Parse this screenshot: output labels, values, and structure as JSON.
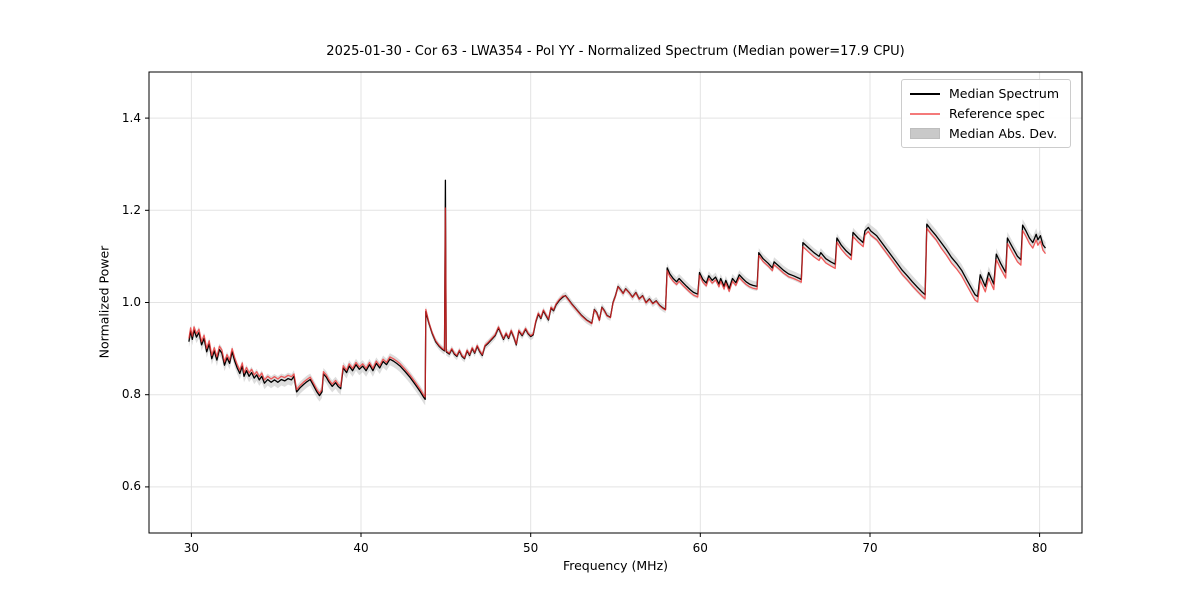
{
  "chart_data": {
    "type": "line",
    "title": "2025-01-30 - Cor 63 - LWA354 - Pol YY - Normalized Spectrum (Median power=17.9 CPU)",
    "xlabel": "Frequency (MHz)",
    "ylabel": "Normalized Power",
    "xlim": [
      27.5,
      82.5
    ],
    "ylim": [
      0.5,
      1.5
    ],
    "xticks": [
      30,
      40,
      50,
      60,
      70,
      80
    ],
    "yticks": [
      0.6,
      0.8,
      1.0,
      1.2,
      1.4
    ],
    "grid": true,
    "legend_position": "upper right",
    "colors": {
      "median": "#000000",
      "reference": "#f02b2b",
      "reference_legend": "#f47a7a",
      "band": "#bbbbbb",
      "grid": "#e3e3e3",
      "spine": "#000000"
    },
    "legend": {
      "entries": [
        {
          "label": "Median Spectrum",
          "type": "line",
          "color": "#000000"
        },
        {
          "label": "Reference spec",
          "type": "line",
          "color": "#f47a7a"
        },
        {
          "label": "Median Abs. Dev.",
          "type": "patch",
          "color": "#c9c9c9"
        }
      ]
    },
    "series": [
      {
        "name": "Median Spectrum",
        "points": [
          [
            29.85,
            0.915
          ],
          [
            29.95,
            0.938
          ],
          [
            30.05,
            0.92
          ],
          [
            30.15,
            0.94
          ],
          [
            30.3,
            0.925
          ],
          [
            30.45,
            0.935
          ],
          [
            30.6,
            0.908
          ],
          [
            30.75,
            0.922
          ],
          [
            30.9,
            0.893
          ],
          [
            31.05,
            0.91
          ],
          [
            31.2,
            0.878
          ],
          [
            31.35,
            0.895
          ],
          [
            31.5,
            0.875
          ],
          [
            31.65,
            0.898
          ],
          [
            31.8,
            0.89
          ],
          [
            31.95,
            0.864
          ],
          [
            32.1,
            0.88
          ],
          [
            32.25,
            0.868
          ],
          [
            32.4,
            0.893
          ],
          [
            32.55,
            0.873
          ],
          [
            32.7,
            0.858
          ],
          [
            32.85,
            0.846
          ],
          [
            33.0,
            0.862
          ],
          [
            33.1,
            0.84
          ],
          [
            33.25,
            0.852
          ],
          [
            33.4,
            0.84
          ],
          [
            33.55,
            0.848
          ],
          [
            33.7,
            0.836
          ],
          [
            33.85,
            0.843
          ],
          [
            34.0,
            0.832
          ],
          [
            34.15,
            0.84
          ],
          [
            34.3,
            0.825
          ],
          [
            34.5,
            0.833
          ],
          [
            34.7,
            0.827
          ],
          [
            34.9,
            0.832
          ],
          [
            35.1,
            0.827
          ],
          [
            35.3,
            0.833
          ],
          [
            35.5,
            0.83
          ],
          [
            35.7,
            0.835
          ],
          [
            35.9,
            0.832
          ],
          [
            36.05,
            0.84
          ],
          [
            36.2,
            0.806
          ],
          [
            36.4,
            0.815
          ],
          [
            36.6,
            0.822
          ],
          [
            36.8,
            0.828
          ],
          [
            37.0,
            0.833
          ],
          [
            37.2,
            0.82
          ],
          [
            37.4,
            0.806
          ],
          [
            37.55,
            0.798
          ],
          [
            37.7,
            0.806
          ],
          [
            37.78,
            0.845
          ],
          [
            37.95,
            0.838
          ],
          [
            38.1,
            0.828
          ],
          [
            38.3,
            0.818
          ],
          [
            38.5,
            0.826
          ],
          [
            38.65,
            0.818
          ],
          [
            38.8,
            0.813
          ],
          [
            38.95,
            0.858
          ],
          [
            39.15,
            0.848
          ],
          [
            39.3,
            0.862
          ],
          [
            39.5,
            0.852
          ],
          [
            39.7,
            0.865
          ],
          [
            39.9,
            0.855
          ],
          [
            40.1,
            0.862
          ],
          [
            40.3,
            0.852
          ],
          [
            40.5,
            0.865
          ],
          [
            40.7,
            0.852
          ],
          [
            40.9,
            0.868
          ],
          [
            41.1,
            0.858
          ],
          [
            41.3,
            0.872
          ],
          [
            41.5,
            0.865
          ],
          [
            41.7,
            0.877
          ],
          [
            41.9,
            0.873
          ],
          [
            42.1,
            0.868
          ],
          [
            42.3,
            0.862
          ],
          [
            42.6,
            0.85
          ],
          [
            42.9,
            0.837
          ],
          [
            43.2,
            0.822
          ],
          [
            43.5,
            0.806
          ],
          [
            43.7,
            0.794
          ],
          [
            43.78,
            0.79
          ],
          [
            43.82,
            0.98
          ],
          [
            44.0,
            0.955
          ],
          [
            44.2,
            0.932
          ],
          [
            44.4,
            0.915
          ],
          [
            44.6,
            0.905
          ],
          [
            44.8,
            0.898
          ],
          [
            44.92,
            0.895
          ],
          [
            44.97,
            1.265
          ],
          [
            45.02,
            0.893
          ],
          [
            45.2,
            0.888
          ],
          [
            45.35,
            0.898
          ],
          [
            45.5,
            0.888
          ],
          [
            45.65,
            0.883
          ],
          [
            45.8,
            0.895
          ],
          [
            45.95,
            0.883
          ],
          [
            46.1,
            0.878
          ],
          [
            46.25,
            0.895
          ],
          [
            46.4,
            0.885
          ],
          [
            46.55,
            0.9
          ],
          [
            46.7,
            0.89
          ],
          [
            46.85,
            0.905
          ],
          [
            47.0,
            0.893
          ],
          [
            47.15,
            0.885
          ],
          [
            47.3,
            0.905
          ],
          [
            47.5,
            0.912
          ],
          [
            47.7,
            0.92
          ],
          [
            47.9,
            0.928
          ],
          [
            48.1,
            0.945
          ],
          [
            48.25,
            0.932
          ],
          [
            48.4,
            0.92
          ],
          [
            48.55,
            0.932
          ],
          [
            48.7,
            0.922
          ],
          [
            48.85,
            0.938
          ],
          [
            49.0,
            0.925
          ],
          [
            49.15,
            0.908
          ],
          [
            49.3,
            0.938
          ],
          [
            49.5,
            0.928
          ],
          [
            49.7,
            0.942
          ],
          [
            49.85,
            0.932
          ],
          [
            50.0,
            0.926
          ],
          [
            50.15,
            0.93
          ],
          [
            50.3,
            0.958
          ],
          [
            50.45,
            0.975
          ],
          [
            50.6,
            0.965
          ],
          [
            50.75,
            0.982
          ],
          [
            50.9,
            0.972
          ],
          [
            51.05,
            0.962
          ],
          [
            51.2,
            0.988
          ],
          [
            51.35,
            0.982
          ],
          [
            51.5,
            0.995
          ],
          [
            51.7,
            1.005
          ],
          [
            51.9,
            1.012
          ],
          [
            52.05,
            1.015
          ],
          [
            52.2,
            1.008
          ],
          [
            52.4,
            0.998
          ],
          [
            52.7,
            0.985
          ],
          [
            53.0,
            0.972
          ],
          [
            53.3,
            0.962
          ],
          [
            53.6,
            0.955
          ],
          [
            53.75,
            0.985
          ],
          [
            53.9,
            0.978
          ],
          [
            54.05,
            0.962
          ],
          [
            54.2,
            0.99
          ],
          [
            54.35,
            0.982
          ],
          [
            54.5,
            0.972
          ],
          [
            54.7,
            0.968
          ],
          [
            54.85,
            1.0
          ],
          [
            55.0,
            1.015
          ],
          [
            55.15,
            1.035
          ],
          [
            55.3,
            1.028
          ],
          [
            55.45,
            1.02
          ],
          [
            55.6,
            1.03
          ],
          [
            55.8,
            1.022
          ],
          [
            56.0,
            1.012
          ],
          [
            56.2,
            1.022
          ],
          [
            56.4,
            1.008
          ],
          [
            56.6,
            1.015
          ],
          [
            56.8,
            1.0
          ],
          [
            57.0,
            1.008
          ],
          [
            57.2,
            0.998
          ],
          [
            57.4,
            1.004
          ],
          [
            57.6,
            0.994
          ],
          [
            57.8,
            0.988
          ],
          [
            57.95,
            0.985
          ],
          [
            58.05,
            1.075
          ],
          [
            58.2,
            1.062
          ],
          [
            58.4,
            1.052
          ],
          [
            58.6,
            1.045
          ],
          [
            58.75,
            1.052
          ],
          [
            59.0,
            1.042
          ],
          [
            59.2,
            1.035
          ],
          [
            59.4,
            1.028
          ],
          [
            59.6,
            1.022
          ],
          [
            59.85,
            1.018
          ],
          [
            59.95,
            1.065
          ],
          [
            60.15,
            1.05
          ],
          [
            60.35,
            1.042
          ],
          [
            60.5,
            1.058
          ],
          [
            60.7,
            1.048
          ],
          [
            60.9,
            1.055
          ],
          [
            61.1,
            1.04
          ],
          [
            61.2,
            1.052
          ],
          [
            61.4,
            1.035
          ],
          [
            61.5,
            1.048
          ],
          [
            61.7,
            1.03
          ],
          [
            61.9,
            1.052
          ],
          [
            62.1,
            1.043
          ],
          [
            62.3,
            1.06
          ],
          [
            62.5,
            1.052
          ],
          [
            62.7,
            1.045
          ],
          [
            62.9,
            1.04
          ],
          [
            63.1,
            1.037
          ],
          [
            63.35,
            1.035
          ],
          [
            63.45,
            1.108
          ],
          [
            63.7,
            1.095
          ],
          [
            64.0,
            1.085
          ],
          [
            64.25,
            1.075
          ],
          [
            64.35,
            1.088
          ],
          [
            64.6,
            1.08
          ],
          [
            64.9,
            1.07
          ],
          [
            65.2,
            1.062
          ],
          [
            65.5,
            1.058
          ],
          [
            65.8,
            1.053
          ],
          [
            65.95,
            1.05
          ],
          [
            66.05,
            1.13
          ],
          [
            66.4,
            1.118
          ],
          [
            66.7,
            1.108
          ],
          [
            67.0,
            1.1
          ],
          [
            67.1,
            1.108
          ],
          [
            67.4,
            1.095
          ],
          [
            67.7,
            1.088
          ],
          [
            67.95,
            1.083
          ],
          [
            68.05,
            1.14
          ],
          [
            68.3,
            1.125
          ],
          [
            68.6,
            1.112
          ],
          [
            68.9,
            1.102
          ],
          [
            69.0,
            1.152
          ],
          [
            69.3,
            1.14
          ],
          [
            69.6,
            1.13
          ],
          [
            69.7,
            1.155
          ],
          [
            69.9,
            1.163
          ],
          [
            70.05,
            1.155
          ],
          [
            70.4,
            1.145
          ],
          [
            70.7,
            1.13
          ],
          [
            71.0,
            1.115
          ],
          [
            71.3,
            1.1
          ],
          [
            71.6,
            1.085
          ],
          [
            71.9,
            1.07
          ],
          [
            72.2,
            1.058
          ],
          [
            72.5,
            1.045
          ],
          [
            72.8,
            1.033
          ],
          [
            73.1,
            1.022
          ],
          [
            73.25,
            1.017
          ],
          [
            73.35,
            1.17
          ],
          [
            73.6,
            1.158
          ],
          [
            73.9,
            1.145
          ],
          [
            74.2,
            1.13
          ],
          [
            74.5,
            1.115
          ],
          [
            74.8,
            1.098
          ],
          [
            75.1,
            1.085
          ],
          [
            75.4,
            1.07
          ],
          [
            75.7,
            1.05
          ],
          [
            76.0,
            1.03
          ],
          [
            76.2,
            1.017
          ],
          [
            76.35,
            1.013
          ],
          [
            76.5,
            1.06
          ],
          [
            76.8,
            1.035
          ],
          [
            77.0,
            1.065
          ],
          [
            77.3,
            1.04
          ],
          [
            77.45,
            1.105
          ],
          [
            77.7,
            1.085
          ],
          [
            78.0,
            1.065
          ],
          [
            78.1,
            1.14
          ],
          [
            78.4,
            1.12
          ],
          [
            78.7,
            1.1
          ],
          [
            78.9,
            1.093
          ],
          [
            79.0,
            1.168
          ],
          [
            79.2,
            1.155
          ],
          [
            79.4,
            1.14
          ],
          [
            79.6,
            1.13
          ],
          [
            79.8,
            1.148
          ],
          [
            79.9,
            1.136
          ],
          [
            80.05,
            1.145
          ],
          [
            80.2,
            1.125
          ],
          [
            80.35,
            1.118
          ]
        ]
      }
    ],
    "reference_spec": {
      "derived_from": "Median Spectrum",
      "offsets": [
        {
          "from": 27.5,
          "to": 36.0,
          "dy": 0.007
        },
        {
          "from": 36.0,
          "to": 44.0,
          "dy": 0.005
        },
        {
          "from": 44.0,
          "to": 52.0,
          "dy": 0.002
        },
        {
          "from": 52.0,
          "to": 58.0,
          "dy": -0.001
        },
        {
          "from": 58.0,
          "to": 66.0,
          "dy": -0.006
        },
        {
          "from": 66.0,
          "to": 74.0,
          "dy": -0.009
        },
        {
          "from": 74.0,
          "to": 82.5,
          "dy": -0.012
        }
      ],
      "spike_cap": 1.205
    },
    "mad_band": {
      "halfwidths": [
        {
          "from": 27.5,
          "to": 44.0,
          "hw": 0.013
        },
        {
          "from": 44.0,
          "to": 58.0,
          "hw": 0.008
        },
        {
          "from": 58.0,
          "to": 70.0,
          "hw": 0.01
        },
        {
          "from": 70.0,
          "to": 82.5,
          "hw": 0.013
        }
      ]
    }
  }
}
